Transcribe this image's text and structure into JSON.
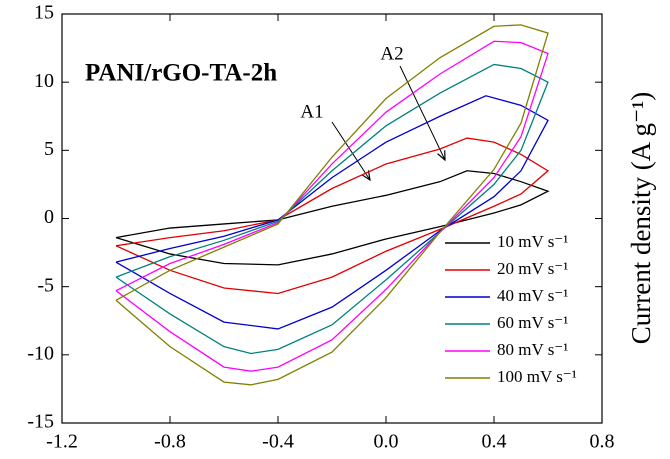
{
  "chart_data": {
    "type": "line",
    "title": "PANI/rGO-TA-2h",
    "y_label": "Current density (A g⁻¹)",
    "annotations": [
      "A1",
      "A2"
    ],
    "legend": "lower right",
    "xlim": [
      -1.2,
      0.8
    ],
    "xticks": [
      -1.2,
      -0.8,
      -0.4,
      {
        "value": 0,
        "label": "0.0"
      },
      0.4,
      0.8
    ],
    "ylim": [
      -15,
      15
    ],
    "yticks": [
      -15,
      -10,
      -5,
      0,
      5,
      10,
      15
    ],
    "series": [
      {
        "name": "10 mV s⁻¹",
        "color": "#000000",
        "x": [
          -1.0,
          -0.8,
          -0.6,
          -0.4,
          -0.2,
          0.0,
          0.2,
          0.3,
          0.4,
          0.5,
          0.6,
          0.5,
          0.4,
          0.2,
          0.0,
          -0.2,
          -0.4,
          -0.6,
          -0.8,
          -1.0
        ],
        "values": [
          -1.4,
          -0.7,
          -0.4,
          -0.1,
          0.9,
          1.7,
          2.7,
          3.5,
          3.3,
          2.7,
          2.0,
          1.0,
          0.4,
          -0.6,
          -1.5,
          -2.6,
          -3.4,
          -3.3,
          -2.6,
          -1.4
        ]
      },
      {
        "name": "20 mV s⁻¹",
        "color": "#e00000",
        "x": [
          -1.0,
          -0.8,
          -0.6,
          -0.4,
          -0.2,
          0.0,
          0.2,
          0.3,
          0.4,
          0.5,
          0.6,
          0.5,
          0.4,
          0.2,
          0.0,
          -0.2,
          -0.4,
          -0.6,
          -0.8,
          -1.0
        ],
        "values": [
          -2.0,
          -1.4,
          -0.9,
          -0.1,
          2.2,
          4.0,
          5.1,
          5.9,
          5.6,
          4.7,
          3.5,
          1.8,
          0.9,
          -0.8,
          -2.4,
          -4.3,
          -5.5,
          -5.1,
          -3.8,
          -2.0
        ]
      },
      {
        "name": "40 mV s⁻¹",
        "color": "#0000cc",
        "x": [
          -1.0,
          -0.8,
          -0.6,
          -0.4,
          -0.2,
          0.0,
          0.2,
          0.37,
          0.5,
          0.6,
          0.5,
          0.4,
          0.2,
          0.0,
          -0.2,
          -0.4,
          -0.6,
          -0.8,
          -1.0
        ],
        "values": [
          -3.2,
          -2.2,
          -1.3,
          -0.1,
          3.0,
          5.6,
          7.5,
          9.0,
          8.3,
          7.2,
          3.5,
          1.6,
          -0.9,
          -3.8,
          -6.5,
          -8.1,
          -7.6,
          -5.5,
          -3.2
        ]
      },
      {
        "name": "60 mV s⁻¹",
        "color": "#008080",
        "x": [
          -1.0,
          -0.8,
          -0.6,
          -0.4,
          -0.2,
          0.0,
          0.2,
          0.4,
          0.5,
          0.6,
          0.5,
          0.4,
          0.2,
          0.0,
          -0.2,
          -0.4,
          -0.5,
          -0.6,
          -0.8,
          -1.0
        ],
        "values": [
          -4.3,
          -2.8,
          -1.6,
          -0.2,
          3.5,
          6.8,
          9.2,
          11.3,
          11.0,
          10.0,
          5.0,
          2.5,
          -1.0,
          -4.5,
          -7.8,
          -9.6,
          -9.9,
          -9.4,
          -7.0,
          -4.3
        ]
      },
      {
        "name": "80 mV s⁻¹",
        "color": "#ff00ff",
        "x": [
          -1.0,
          -0.8,
          -0.6,
          -0.4,
          -0.2,
          0.0,
          0.2,
          0.4,
          0.5,
          0.6,
          0.5,
          0.4,
          0.2,
          0.0,
          -0.2,
          -0.4,
          -0.5,
          -0.6,
          -0.8,
          -1.0
        ],
        "values": [
          -5.3,
          -3.3,
          -1.9,
          -0.3,
          4.0,
          7.8,
          10.6,
          13.0,
          12.9,
          12.1,
          6.0,
          3.0,
          -1.0,
          -5.2,
          -8.9,
          -10.9,
          -11.2,
          -10.9,
          -8.3,
          -5.3
        ]
      },
      {
        "name": "100 mV s⁻¹",
        "color": "#808000",
        "x": [
          -1.0,
          -0.8,
          -0.6,
          -0.4,
          -0.2,
          0.0,
          0.2,
          0.4,
          0.5,
          0.6,
          0.5,
          0.4,
          0.2,
          0.0,
          -0.2,
          -0.4,
          -0.5,
          -0.6,
          -0.8,
          -1.0
        ],
        "values": [
          -6.0,
          -3.8,
          -2.1,
          -0.4,
          4.5,
          8.8,
          11.8,
          14.1,
          14.2,
          13.6,
          7.0,
          3.6,
          -1.0,
          -5.8,
          -9.8,
          -11.8,
          -12.2,
          -12.0,
          -9.4,
          -6.0
        ]
      }
    ]
  }
}
